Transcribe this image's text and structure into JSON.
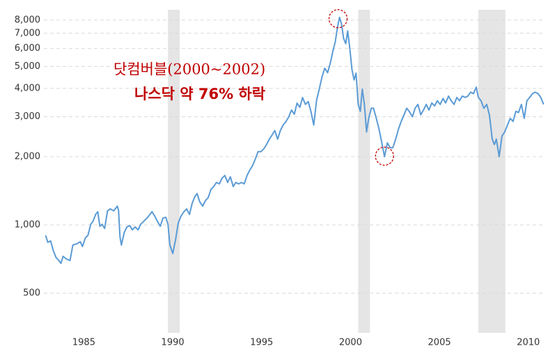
{
  "chart_data": {
    "type": "line",
    "log_y": true,
    "grid": true,
    "annotations": [
      "닷컴버블(2000~2002)",
      "나스닥 약 76% 하락"
    ],
    "annotation_color": "#c00000",
    "shaded_ranges": [
      [
        1989.73,
        1990.39
      ],
      [
        2000.43,
        2001.09
      ],
      [
        2007.19,
        2008.71
      ]
    ],
    "shade_color": "#e5e5e5",
    "highlights": [
      {
        "x": 1999.3,
        "y": 8120
      },
      {
        "x": 2001.91,
        "y": 2010
      }
    ],
    "xlim": [
      1982.75,
      2010.95
    ],
    "xticks": [
      1985,
      1990,
      1995,
      2000,
      2005,
      2010
    ],
    "ylim": [
      334,
      8890
    ],
    "yticks": [
      500,
      {
        "value": 1000,
        "label": "1,000"
      },
      {
        "value": 2000,
        "label": "2,000"
      },
      {
        "value": 3000,
        "label": "3,000"
      },
      {
        "value": 4000,
        "label": "4,000"
      },
      {
        "value": 5000,
        "label": "5,000"
      },
      {
        "value": 6000,
        "label": "6,000"
      },
      {
        "value": 7000,
        "label": "7,000"
      },
      {
        "value": 8000,
        "label": "8,000"
      }
    ],
    "x": [
      1982.85,
      1982.97,
      1983.13,
      1983.28,
      1983.44,
      1983.59,
      1983.71,
      1983.83,
      1984.02,
      1984.22,
      1984.38,
      1984.61,
      1984.8,
      1984.92,
      1985.08,
      1985.23,
      1985.39,
      1985.51,
      1985.66,
      1985.78,
      1985.9,
      1986.02,
      1986.17,
      1986.33,
      1986.48,
      1986.68,
      1986.88,
      1986.95,
      1987.03,
      1987.11,
      1987.27,
      1987.42,
      1987.58,
      1987.73,
      1987.89,
      1988.05,
      1988.2,
      1988.36,
      1988.59,
      1988.83,
      1988.98,
      1989.14,
      1989.3,
      1989.45,
      1989.61,
      1989.73,
      1989.84,
      1990.0,
      1990.16,
      1990.31,
      1990.47,
      1990.63,
      1990.78,
      1990.94,
      1991.09,
      1991.25,
      1991.37,
      1991.52,
      1991.68,
      1991.84,
      1991.99,
      1992.15,
      1992.3,
      1992.46,
      1992.62,
      1992.77,
      1992.93,
      1993.09,
      1993.24,
      1993.4,
      1993.55,
      1993.71,
      1993.87,
      1994.02,
      1994.18,
      1994.34,
      1994.49,
      1994.65,
      1994.8,
      1994.96,
      1995.12,
      1995.27,
      1995.43,
      1995.59,
      1995.74,
      1995.9,
      1996.05,
      1996.21,
      1996.37,
      1996.52,
      1996.68,
      1996.84,
      1996.99,
      1997.15,
      1997.3,
      1997.46,
      1997.62,
      1997.77,
      1997.93,
      1998.09,
      1998.24,
      1998.4,
      1998.55,
      1998.71,
      1998.87,
      1999.02,
      1999.14,
      1999.26,
      1999.38,
      1999.49,
      1999.61,
      1999.73,
      1999.84,
      1999.96,
      2000.08,
      2000.2,
      2000.31,
      2000.43,
      2000.55,
      2000.66,
      2000.78,
      2000.9,
      2001.02,
      2001.17,
      2001.29,
      2001.45,
      2001.6,
      2001.76,
      2001.91,
      2002.07,
      2002.23,
      2002.38,
      2002.54,
      2002.7,
      2002.85,
      2003.01,
      2003.16,
      2003.32,
      2003.48,
      2003.63,
      2003.79,
      2003.95,
      2004.1,
      2004.26,
      2004.41,
      2004.57,
      2004.73,
      2004.88,
      2005.04,
      2005.2,
      2005.35,
      2005.51,
      2005.66,
      2005.82,
      2005.98,
      2006.13,
      2006.29,
      2006.45,
      2006.6,
      2006.76,
      2006.91,
      2007.07,
      2007.19,
      2007.34,
      2007.5,
      2007.66,
      2007.81,
      2007.97,
      2008.09,
      2008.2,
      2008.36,
      2008.52,
      2008.67,
      2008.83,
      2008.98,
      2009.14,
      2009.3,
      2009.45,
      2009.61,
      2009.77,
      2009.92,
      2010.08,
      2010.23,
      2010.39,
      2010.55,
      2010.7,
      2010.86
    ],
    "series": [
      {
        "color": "#5b9bd5",
        "values": [
          899,
          838,
          850,
          770,
          717,
          697,
          677,
          727,
          707,
          697,
          815,
          826,
          843,
          803,
          874,
          900,
          1007,
          1036,
          1112,
          1144,
          986,
          1007,
          965,
          1153,
          1177,
          1153,
          1210,
          1160,
          887,
          815,
          925,
          979,
          993,
          951,
          979,
          951,
          1007,
          1036,
          1080,
          1144,
          1096,
          1036,
          986,
          1072,
          1080,
          1007,
          815,
          748,
          862,
          1021,
          1096,
          1144,
          1177,
          1112,
          1245,
          1336,
          1375,
          1263,
          1210,
          1281,
          1318,
          1434,
          1476,
          1539,
          1517,
          1606,
          1652,
          1539,
          1630,
          1476,
          1539,
          1517,
          1539,
          1517,
          1652,
          1748,
          1827,
          1957,
          2104,
          2104,
          2165,
          2257,
          2388,
          2495,
          2606,
          2388,
          2606,
          2757,
          2859,
          2991,
          3210,
          3078,
          3445,
          3300,
          3648,
          3400,
          3500,
          3170,
          2757,
          3550,
          3970,
          4510,
          4908,
          4690,
          5200,
          5900,
          6410,
          7390,
          8230,
          7700,
          6640,
          6300,
          7170,
          6000,
          4840,
          4360,
          4670,
          3400,
          3170,
          3970,
          3400,
          2570,
          2950,
          3270,
          3270,
          2950,
          2650,
          2300,
          2000,
          2300,
          2190,
          2190,
          2390,
          2650,
          2860,
          3060,
          3270,
          3150,
          3000,
          3270,
          3400,
          3060,
          3210,
          3400,
          3210,
          3450,
          3350,
          3530,
          3400,
          3610,
          3450,
          3700,
          3530,
          3400,
          3650,
          3530,
          3700,
          3650,
          3700,
          3850,
          3790,
          4050,
          3650,
          3530,
          3270,
          3400,
          3060,
          2390,
          2260,
          2390,
          2000,
          2470,
          2570,
          2760,
          2950,
          2860,
          3170,
          3130,
          3400,
          2950,
          3530,
          3650,
          3790,
          3850,
          3790,
          3650,
          3400
        ]
      }
    ]
  }
}
